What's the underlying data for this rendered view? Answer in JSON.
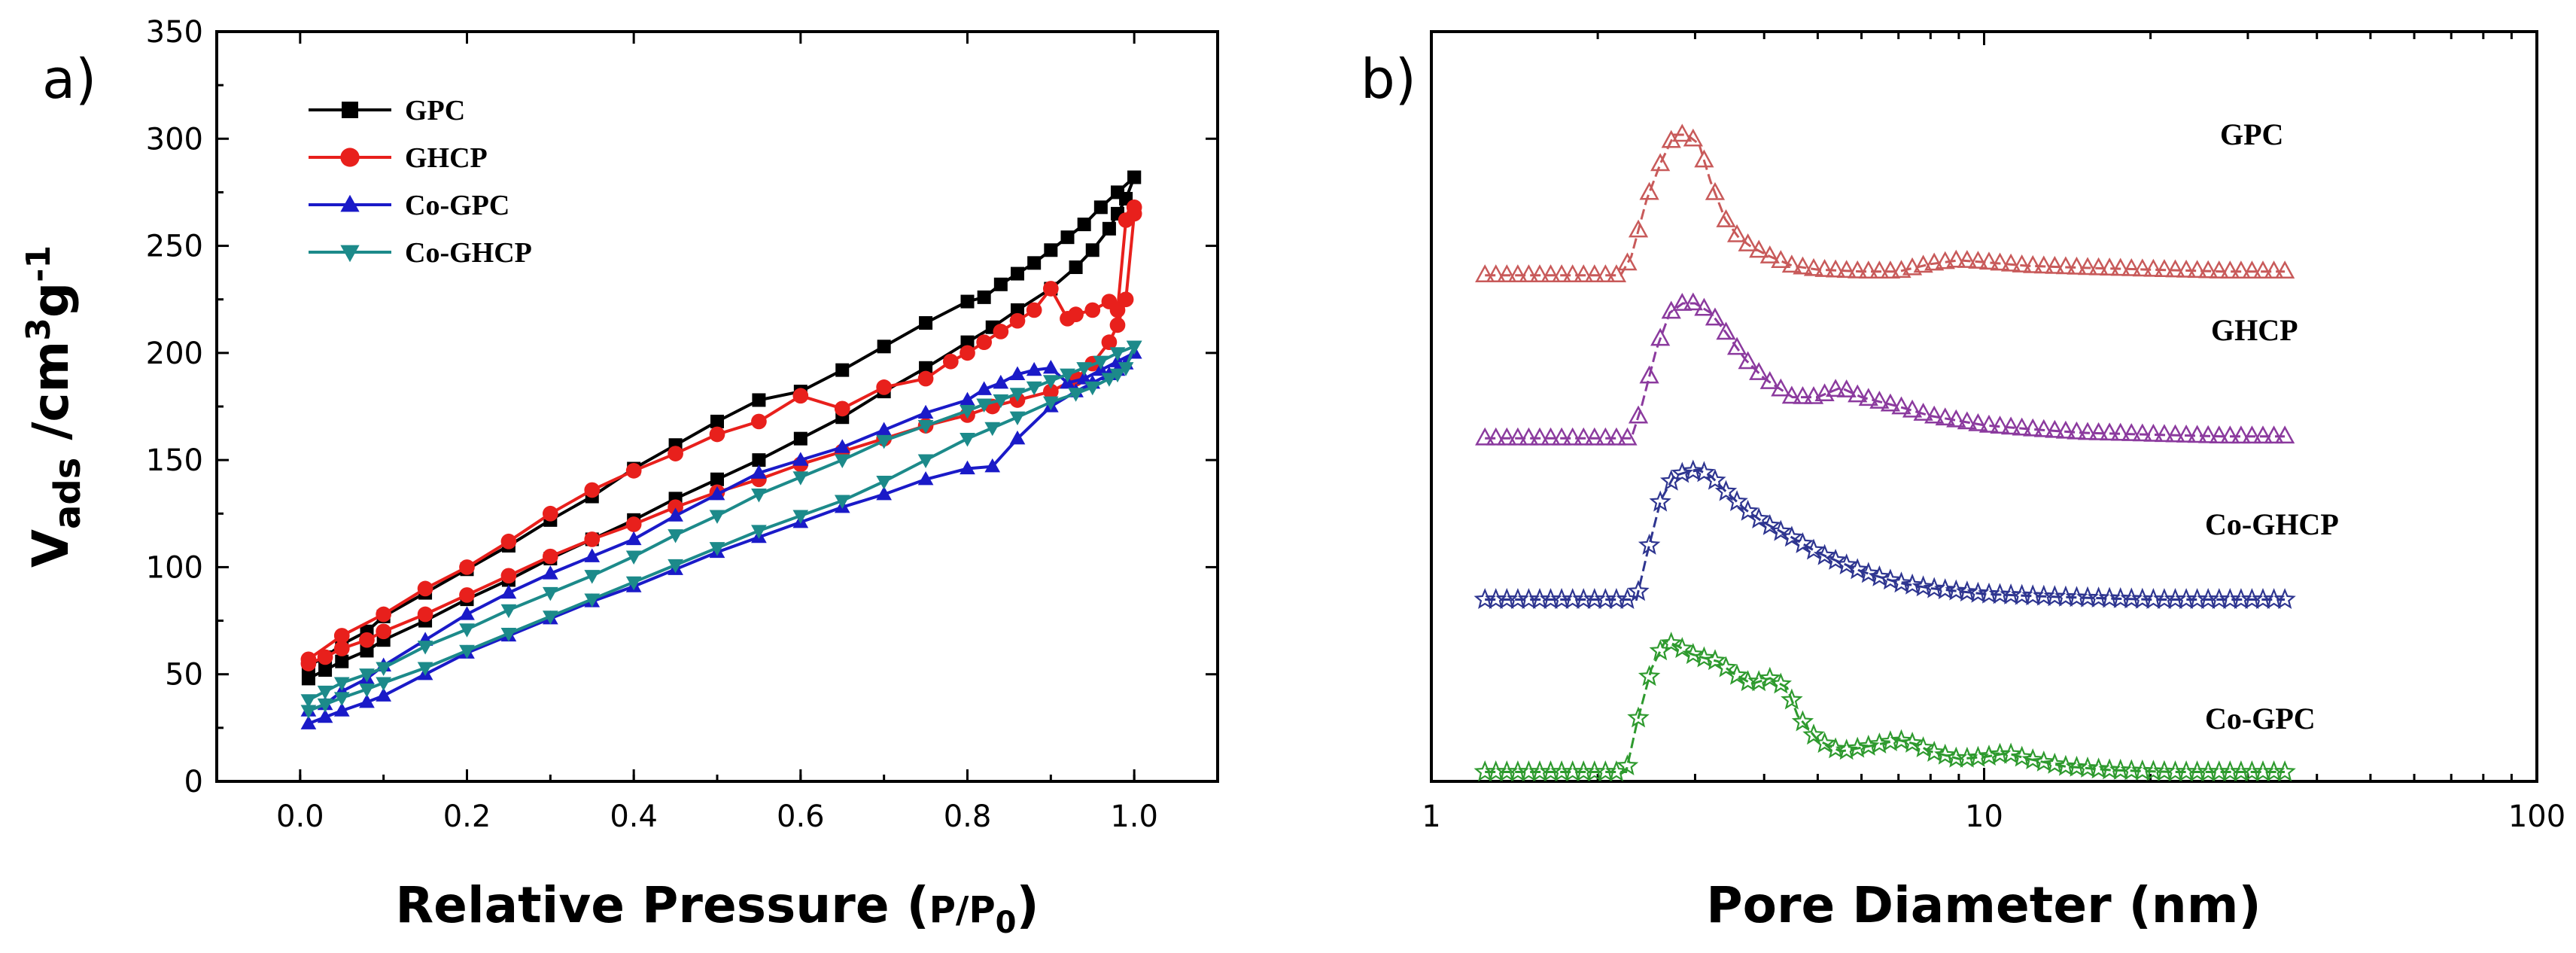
{
  "colors": {
    "GPC_a": "#000000",
    "GHCP_a": "#e8201c",
    "CoGPC_a": "#1a1ac8",
    "CoGHCP_a": "#1c8a8a",
    "GPC_b": "#c85a5a",
    "GHCP_b": "#8b3a9e",
    "CoGHCP_b": "#2e3590",
    "CoGPC_b": "#2e9a2e"
  },
  "chart_data": [
    {
      "panel_label": "a)",
      "type": "line",
      "title": "",
      "xlabel": "Relative Pressure (P/P0)",
      "xlabel_parts": {
        "main": "Relative Pressure (",
        "ratio": "P/P",
        "sub": "0",
        "close": ")"
      },
      "ylabel": "Vads /cm3g-1",
      "ylabel_parts": {
        "v": "V",
        "v_sub": "ads",
        "unit": " /cm",
        "sup3": "3",
        "g": "g",
        "sup_neg1": "-1"
      },
      "xlim": [
        -0.1,
        1.1
      ],
      "ylim": [
        0,
        350
      ],
      "xticks": [
        "0.0",
        "0.2",
        "0.4",
        "0.6",
        "0.8",
        "1.0"
      ],
      "xtick_values": [
        0.0,
        0.2,
        0.4,
        0.6,
        0.8,
        1.0
      ],
      "yticks": [
        "0",
        "50",
        "100",
        "150",
        "200",
        "250",
        "300",
        "350"
      ],
      "ytick_values": [
        0,
        50,
        100,
        150,
        200,
        250,
        300,
        350
      ],
      "legend_position": "top-left",
      "series": [
        {
          "name": "GPC",
          "marker": "square",
          "color_key": "GPC_a",
          "adsorption": {
            "x": [
              0.01,
              0.03,
              0.05,
              0.08,
              0.1,
              0.15,
              0.2,
              0.25,
              0.3,
              0.35,
              0.4,
              0.45,
              0.5,
              0.55,
              0.6,
              0.65,
              0.7,
              0.75,
              0.8,
              0.83,
              0.86,
              0.9,
              0.93,
              0.95,
              0.97,
              0.98,
              0.99,
              1.0
            ],
            "y": [
              48,
              52,
              56,
              61,
              66,
              75,
              85,
              94,
              104,
              113,
              122,
              132,
              141,
              150,
              160,
              170,
              182,
              193,
              205,
              212,
              220,
              230,
              240,
              248,
              258,
              265,
              272,
              282
            ]
          },
          "desorption": {
            "x": [
              1.0,
              0.98,
              0.96,
              0.94,
              0.92,
              0.9,
              0.88,
              0.86,
              0.84,
              0.82,
              0.8,
              0.75,
              0.7,
              0.65,
              0.6,
              0.55,
              0.5,
              0.45,
              0.4,
              0.35,
              0.3,
              0.25,
              0.2,
              0.15,
              0.1,
              0.08,
              0.05,
              0.03,
              0.01
            ],
            "y": [
              282,
              275,
              268,
              260,
              254,
              248,
              242,
              237,
              232,
              226,
              224,
              214,
              203,
              192,
              182,
              178,
              168,
              157,
              146,
              133,
              122,
              110,
              99,
              88,
              77,
              70,
              64,
              58,
              54
            ]
          }
        },
        {
          "name": "GHCP",
          "marker": "circle",
          "color_key": "GHCP_a",
          "adsorption": {
            "x": [
              0.01,
              0.03,
              0.05,
              0.08,
              0.1,
              0.15,
              0.2,
              0.25,
              0.3,
              0.35,
              0.4,
              0.45,
              0.5,
              0.55,
              0.6,
              0.65,
              0.7,
              0.75,
              0.8,
              0.83,
              0.86,
              0.9,
              0.93,
              0.95,
              0.97,
              0.98,
              0.99,
              1.0
            ],
            "y": [
              55,
              58,
              62,
              66,
              70,
              78,
              87,
              96,
              105,
              113,
              120,
              128,
              135,
              141,
              148,
              154,
              160,
              166,
              171,
              175,
              178,
              182,
              188,
              195,
              205,
              213,
              225,
              265
            ]
          },
          "desorption": {
            "x": [
              1.0,
              0.99,
              0.98,
              0.97,
              0.95,
              0.93,
              0.92,
              0.9,
              0.88,
              0.86,
              0.84,
              0.82,
              0.8,
              0.78,
              0.75,
              0.7,
              0.65,
              0.6,
              0.55,
              0.5,
              0.45,
              0.4,
              0.35,
              0.3,
              0.25,
              0.2,
              0.15,
              0.1,
              0.05,
              0.01
            ],
            "y": [
              268,
              262,
              220,
              224,
              220,
              218,
              216,
              230,
              220,
              215,
              210,
              205,
              200,
              196,
              188,
              184,
              174,
              180,
              168,
              162,
              153,
              145,
              136,
              125,
              112,
              100,
              90,
              78,
              68,
              57
            ]
          }
        },
        {
          "name": "Co-GPC",
          "marker": "triangle-up",
          "color_key": "CoGPC_a",
          "adsorption": {
            "x": [
              0.01,
              0.03,
              0.05,
              0.08,
              0.1,
              0.15,
              0.2,
              0.25,
              0.3,
              0.35,
              0.4,
              0.45,
              0.5,
              0.55,
              0.6,
              0.65,
              0.7,
              0.75,
              0.8,
              0.83,
              0.86,
              0.9,
              0.93,
              0.95,
              0.97,
              0.98,
              0.99,
              1.0
            ],
            "y": [
              27,
              30,
              33,
              37,
              40,
              50,
              60,
              68,
              76,
              84,
              91,
              99,
              107,
              114,
              121,
              128,
              134,
              141,
              146,
              147,
              160,
              175,
              182,
              186,
              190,
              192,
              195,
              200
            ]
          },
          "desorption": {
            "x": [
              1.0,
              0.98,
              0.96,
              0.94,
              0.92,
              0.9,
              0.88,
              0.86,
              0.84,
              0.82,
              0.8,
              0.75,
              0.7,
              0.65,
              0.6,
              0.55,
              0.5,
              0.45,
              0.4,
              0.35,
              0.3,
              0.25,
              0.2,
              0.15,
              0.1,
              0.08,
              0.05,
              0.03,
              0.01
            ],
            "y": [
              200,
              196,
              192,
              188,
              186,
              193,
              192,
              190,
              186,
              183,
              178,
              172,
              164,
              156,
              150,
              144,
              134,
              124,
              113,
              105,
              97,
              88,
              78,
              66,
              54,
              48,
              42,
              36,
              33
            ]
          }
        },
        {
          "name": "Co-GHCP",
          "marker": "triangle-down",
          "color_key": "CoGHCP_a",
          "adsorption": {
            "x": [
              0.01,
              0.03,
              0.05,
              0.08,
              0.1,
              0.15,
              0.2,
              0.25,
              0.3,
              0.35,
              0.4,
              0.45,
              0.5,
              0.55,
              0.6,
              0.65,
              0.7,
              0.75,
              0.8,
              0.83,
              0.86,
              0.9,
              0.93,
              0.95,
              0.97,
              0.98,
              0.99,
              1.0
            ],
            "y": [
              33,
              36,
              39,
              43,
              46,
              53,
              61,
              69,
              77,
              85,
              93,
              101,
              109,
              117,
              124,
              131,
              140,
              150,
              160,
              165,
              170,
              177,
              181,
              184,
              188,
              190,
              193,
              203
            ]
          },
          "desorption": {
            "x": [
              1.0,
              0.98,
              0.96,
              0.94,
              0.92,
              0.9,
              0.88,
              0.86,
              0.84,
              0.82,
              0.8,
              0.75,
              0.7,
              0.65,
              0.6,
              0.55,
              0.5,
              0.45,
              0.4,
              0.35,
              0.3,
              0.25,
              0.2,
              0.15,
              0.1,
              0.08,
              0.05,
              0.03,
              0.01
            ],
            "y": [
              203,
              200,
              196,
              193,
              190,
              187,
              184,
              181,
              178,
              176,
              173,
              166,
              159,
              150,
              142,
              134,
              124,
              115,
              105,
              96,
              88,
              80,
              71,
              63,
              53,
              50,
              46,
              42,
              38
            ]
          }
        }
      ]
    },
    {
      "panel_label": "b)",
      "type": "line",
      "title": "",
      "xlabel": "Pore Diameter (nm)",
      "xscale": "log",
      "xlim": [
        1,
        100
      ],
      "xticks": [
        "1",
        "10",
        "100"
      ],
      "xtick_values": [
        1,
        10,
        100
      ],
      "ylim": [
        0,
        1
      ],
      "yticks": [],
      "series": [
        {
          "name": "GPC",
          "marker": "triangle-open",
          "color_key": "GPC_b",
          "baseline": 0.27,
          "x": [
            1.25,
            2.2,
            2.3,
            2.45,
            2.6,
            2.75,
            2.9,
            3.05,
            3.2,
            3.4,
            3.6,
            3.8,
            4.1,
            4.5,
            5,
            6,
            7,
            8,
            9,
            10,
            12,
            15,
            20,
            27,
            35
          ],
          "y": [
            0.27,
            0.27,
            0.28,
            0.31,
            0.33,
            0.345,
            0.345,
            0.34,
            0.32,
            0.3,
            0.29,
            0.285,
            0.28,
            0.275,
            0.273,
            0.272,
            0.272,
            0.276,
            0.278,
            0.277,
            0.275,
            0.274,
            0.273,
            0.272,
            0.272
          ]
        },
        {
          "name": "GHCP",
          "marker": "triangle-open",
          "color_key": "GHCP_b",
          "baseline": 0.183,
          "x": [
            1.25,
            2.3,
            2.4,
            2.55,
            2.7,
            2.85,
            3.0,
            3.2,
            3.4,
            3.7,
            4,
            4.5,
            5,
            5.5,
            6,
            7,
            8,
            10,
            12,
            15,
            20,
            27,
            35
          ],
          "y": [
            0.183,
            0.183,
            0.2,
            0.23,
            0.25,
            0.255,
            0.255,
            0.25,
            0.24,
            0.225,
            0.215,
            0.205,
            0.205,
            0.21,
            0.205,
            0.2,
            0.195,
            0.19,
            0.188,
            0.186,
            0.185,
            0.184,
            0.184
          ]
        },
        {
          "name": "Co-GHCP",
          "marker": "star-open",
          "color_key": "CoGHCP_b",
          "baseline": 0.097,
          "x": [
            1.25,
            2.35,
            2.45,
            2.6,
            2.75,
            2.9,
            3.05,
            3.2,
            3.4,
            3.7,
            4,
            4.5,
            5,
            6,
            7,
            8,
            10,
            12,
            15,
            20,
            27,
            35
          ],
          "y": [
            0.097,
            0.097,
            0.12,
            0.15,
            0.163,
            0.165,
            0.166,
            0.163,
            0.155,
            0.145,
            0.138,
            0.13,
            0.122,
            0.112,
            0.106,
            0.103,
            0.1,
            0.099,
            0.098,
            0.097,
            0.097,
            0.097
          ]
        },
        {
          "name": "Co-GPC",
          "marker": "star-open",
          "color_key": "CoGPC_b",
          "baseline": 0.005,
          "x": [
            1.25,
            2.25,
            2.35,
            2.5,
            2.65,
            2.8,
            2.95,
            3.1,
            3.3,
            3.5,
            3.8,
            4.1,
            4.4,
            4.6,
            5,
            5.5,
            6,
            6.5,
            7,
            7.5,
            8,
            9,
            10,
            11,
            12,
            14,
            17,
            22,
            28,
            35
          ],
          "y": [
            0.005,
            0.005,
            0.03,
            0.06,
            0.075,
            0.072,
            0.068,
            0.066,
            0.064,
            0.058,
            0.052,
            0.055,
            0.05,
            0.035,
            0.022,
            0.016,
            0.018,
            0.02,
            0.022,
            0.02,
            0.016,
            0.012,
            0.013,
            0.015,
            0.012,
            0.008,
            0.006,
            0.005,
            0.005,
            0.005
          ]
        }
      ]
    }
  ]
}
